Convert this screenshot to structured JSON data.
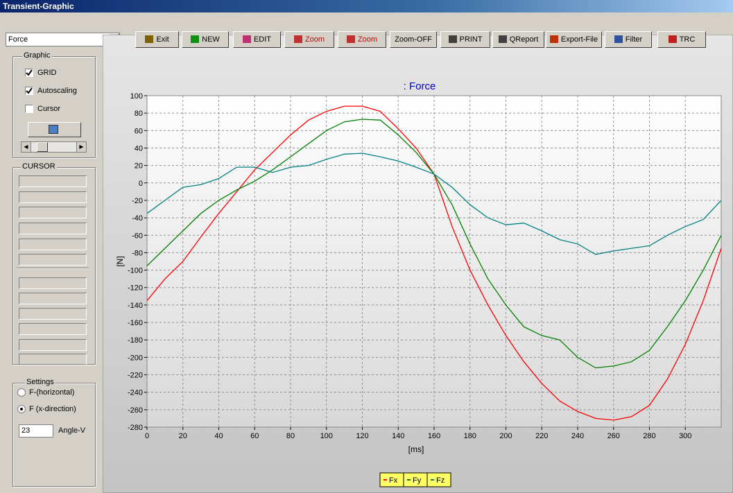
{
  "window": {
    "title": "Transient-Graphic"
  },
  "toolbar": {
    "dropdown": "Force",
    "buttons": [
      "Exit",
      "NEW",
      "EDIT",
      "Zoom",
      "Zoom",
      "Zoom-OFF",
      "PRINT",
      "QReport",
      "Export-File",
      "Filter",
      "TRC"
    ]
  },
  "graphic_panel": {
    "title": "Graphic",
    "checkboxes": [
      {
        "label": "GRID",
        "checked": true
      },
      {
        "label": "Autoscaling",
        "checked": true
      },
      {
        "label": "Cursor",
        "checked": false
      }
    ]
  },
  "cursor_panel": {
    "title": "CURSOR"
  },
  "settings_panel": {
    "title": "Settings",
    "radios": [
      {
        "label": "F-(horizontal)",
        "selected": false
      },
      {
        "label": "F (x-direction)",
        "selected": true
      }
    ],
    "angle_value": 23,
    "angle_label": "Angle-V"
  },
  "chart_data": {
    "type": "line",
    "title": ": Force",
    "x_label": "[ms]",
    "y_label": "[N]",
    "grid": true,
    "xlim": [
      0,
      320
    ],
    "ylim": [
      -280,
      100
    ],
    "xticks": [
      0,
      20,
      40,
      60,
      80,
      100,
      120,
      140,
      160,
      180,
      200,
      220,
      240,
      260,
      280,
      300
    ],
    "yticks": [
      -280,
      -260,
      -240,
      -220,
      -200,
      -180,
      -160,
      -140,
      -120,
      -100,
      -80,
      -60,
      -40,
      -20,
      0,
      20,
      40,
      60,
      80,
      100
    ],
    "x": [
      0,
      10,
      20,
      30,
      40,
      50,
      60,
      70,
      80,
      90,
      100,
      110,
      120,
      130,
      140,
      150,
      160,
      170,
      180,
      190,
      200,
      210,
      220,
      230,
      240,
      250,
      260,
      270,
      280,
      290,
      300,
      310,
      320
    ],
    "series": [
      {
        "name": "Fx",
        "color": "#ff0000",
        "values": [
          -135,
          -110,
          -90,
          -62,
          -35,
          -10,
          15,
          35,
          55,
          72,
          82,
          88,
          88,
          82,
          62,
          40,
          10,
          -50,
          -100,
          -140,
          -175,
          -205,
          -230,
          -250,
          -262,
          -270,
          -272,
          -268,
          -255,
          -225,
          -185,
          -135,
          -75
        ]
      },
      {
        "name": "Fy",
        "color": "#008000",
        "values": [
          -95,
          -75,
          -55,
          -35,
          -20,
          -8,
          2,
          15,
          30,
          45,
          60,
          70,
          73,
          72,
          55,
          35,
          10,
          -25,
          -70,
          -110,
          -140,
          -165,
          -175,
          -180,
          -200,
          -212,
          -210,
          -205,
          -192,
          -165,
          -135,
          -100,
          -60
        ]
      },
      {
        "name": "Fz",
        "color": "#008080",
        "values": [
          -35,
          -20,
          -5,
          -2,
          5,
          18,
          18,
          12,
          18,
          20,
          27,
          33,
          34,
          30,
          25,
          18,
          10,
          -5,
          -25,
          -40,
          -48,
          -46,
          -55,
          -65,
          -70,
          -82,
          -78,
          -75,
          -72,
          -60,
          -50,
          -42,
          -20
        ]
      }
    ]
  }
}
